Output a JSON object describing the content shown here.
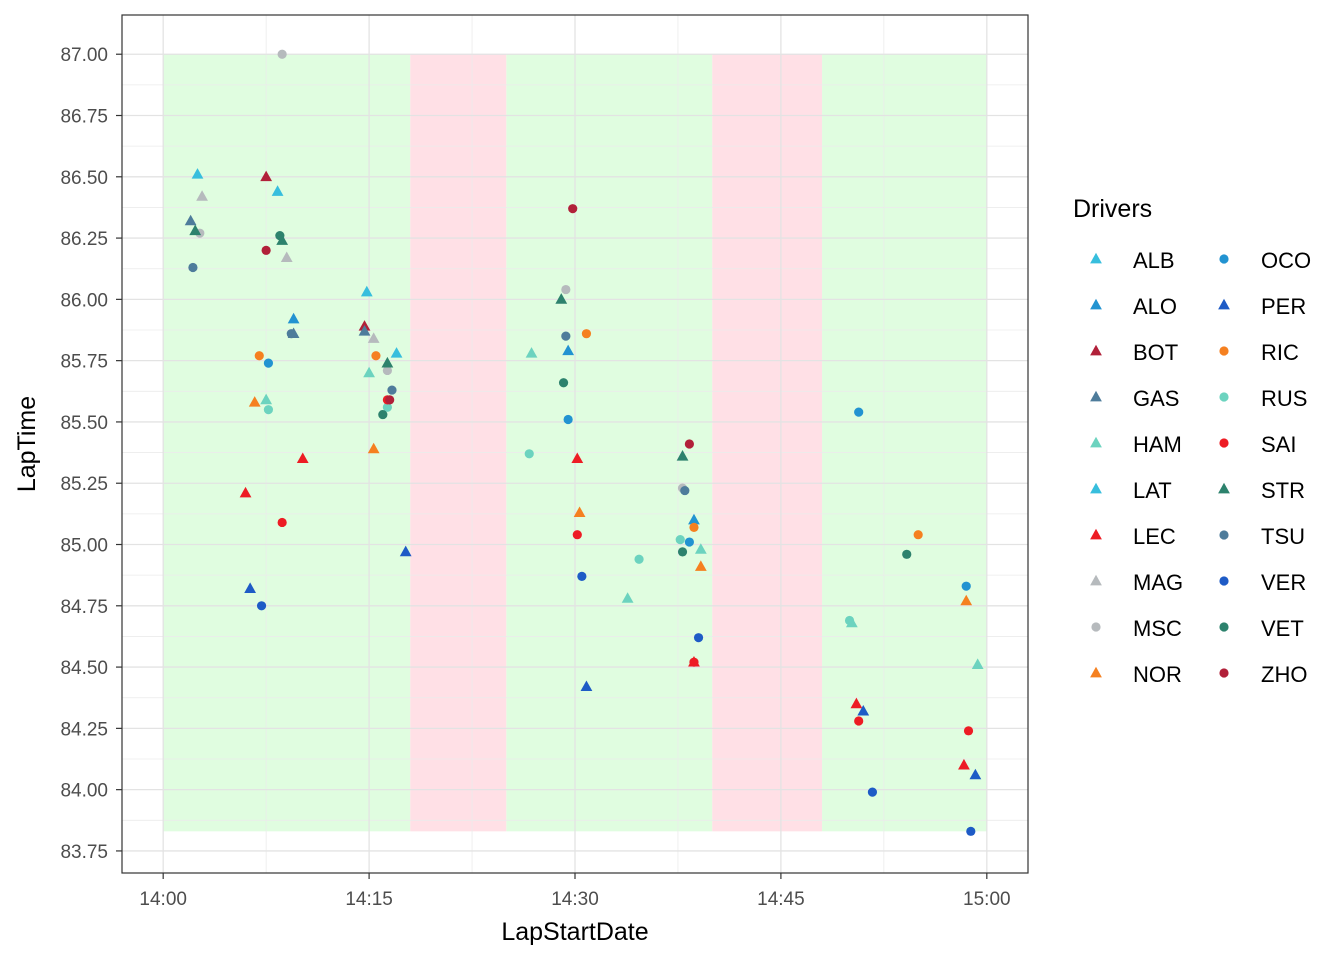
{
  "chart_data": {
    "type": "scatter",
    "xlabel": "LapStartDate",
    "ylabel": "LapTime",
    "x_range": [
      "13:57",
      "15:03"
    ],
    "ylim": [
      83.66,
      87.16
    ],
    "x_ticks": [
      "14:00",
      "14:15",
      "14:30",
      "14:45",
      "15:00"
    ],
    "y_ticks": [
      "83.75",
      "84.00",
      "84.25",
      "84.50",
      "84.75",
      "85.00",
      "85.25",
      "85.50",
      "85.75",
      "86.00",
      "86.25",
      "86.50",
      "86.75",
      "87.00"
    ],
    "grid": true,
    "legend": {
      "title": "Drivers",
      "position": "right",
      "entries": [
        {
          "name": "ALB",
          "color": "#37BEDD",
          "shape": "triangle"
        },
        {
          "name": "ALO",
          "color": "#2293D1",
          "shape": "triangle"
        },
        {
          "name": "BOT",
          "color": "#B12039",
          "shape": "triangle"
        },
        {
          "name": "GAS",
          "color": "#4E7C9B",
          "shape": "triangle"
        },
        {
          "name": "HAM",
          "color": "#6CD3BF",
          "shape": "triangle"
        },
        {
          "name": "LAT",
          "color": "#37BEDD",
          "shape": "triangle"
        },
        {
          "name": "LEC",
          "color": "#ED1C24",
          "shape": "triangle"
        },
        {
          "name": "MAG",
          "color": "#B6BABD",
          "shape": "triangle"
        },
        {
          "name": "MSC",
          "color": "#B6BABD",
          "shape": "circle"
        },
        {
          "name": "NOR",
          "color": "#F58020",
          "shape": "triangle"
        },
        {
          "name": "OCO",
          "color": "#2293D1",
          "shape": "circle"
        },
        {
          "name": "PER",
          "color": "#1E5BC6",
          "shape": "triangle"
        },
        {
          "name": "RIC",
          "color": "#F58020",
          "shape": "circle"
        },
        {
          "name": "RUS",
          "color": "#6CD3BF",
          "shape": "circle"
        },
        {
          "name": "SAI",
          "color": "#ED1C24",
          "shape": "circle"
        },
        {
          "name": "STR",
          "color": "#2D826D",
          "shape": "triangle"
        },
        {
          "name": "TSU",
          "color": "#4E7C9B",
          "shape": "circle"
        },
        {
          "name": "VER",
          "color": "#1E5BC6",
          "shape": "circle"
        },
        {
          "name": "VET",
          "color": "#2D826D",
          "shape": "circle"
        },
        {
          "name": "ZHO",
          "color": "#B12039",
          "shape": "circle"
        }
      ]
    },
    "background_bands": [
      {
        "start": "14:00",
        "end": "14:18",
        "status": "green",
        "color": "#E0FDE0"
      },
      {
        "start": "14:18",
        "end": "14:25",
        "status": "red",
        "color": "#FFE0E6"
      },
      {
        "start": "14:25",
        "end": "14:40",
        "status": "green",
        "color": "#E0FDE0"
      },
      {
        "start": "14:40",
        "end": "14:48",
        "status": "red",
        "color": "#FFE0E6"
      },
      {
        "start": "14:48",
        "end": "15:00",
        "status": "green",
        "color": "#E0FDE0"
      }
    ],
    "bands_y_range": [
      83.83,
      87.0
    ],
    "series": [
      {
        "name": "ALB",
        "points": [
          [
            "14:02:30",
            86.51
          ],
          [
            "14:17:00",
            85.78
          ]
        ]
      },
      {
        "name": "ALO",
        "points": [
          [
            "14:09:30",
            85.92
          ],
          [
            "14:29:30",
            85.79
          ],
          [
            "14:38:40",
            85.1
          ]
        ]
      },
      {
        "name": "BOT",
        "points": [
          [
            "14:07:30",
            86.5
          ],
          [
            "14:14:40",
            85.89
          ]
        ]
      },
      {
        "name": "GAS",
        "points": [
          [
            "14:02:00",
            86.32
          ],
          [
            "14:14:40",
            85.87
          ],
          [
            "14:09:30",
            85.86
          ]
        ]
      },
      {
        "name": "HAM",
        "points": [
          [
            "14:07:30",
            85.59
          ],
          [
            "14:15:00",
            85.7
          ],
          [
            "14:26:50",
            85.78
          ],
          [
            "14:33:50",
            84.78
          ],
          [
            "14:39:10",
            84.98
          ],
          [
            "14:50:10",
            84.68
          ],
          [
            "14:59:20",
            84.51
          ]
        ]
      },
      {
        "name": "LAT",
        "points": [
          [
            "14:08:20",
            86.44
          ],
          [
            "14:14:50",
            86.03
          ]
        ]
      },
      {
        "name": "LEC",
        "points": [
          [
            "14:06:00",
            85.21
          ],
          [
            "14:10:10",
            85.35
          ],
          [
            "14:30:10",
            85.35
          ],
          [
            "14:38:40",
            84.52
          ],
          [
            "14:50:30",
            84.35
          ],
          [
            "14:58:20",
            84.1
          ]
        ]
      },
      {
        "name": "MAG",
        "points": [
          [
            "14:02:50",
            86.42
          ],
          [
            "14:09:00",
            86.17
          ],
          [
            "14:15:20",
            85.84
          ]
        ]
      },
      {
        "name": "MSC",
        "points": [
          [
            "14:08:40",
            87.0
          ],
          [
            "14:02:40",
            86.27
          ],
          [
            "14:29:20",
            86.04
          ],
          [
            "14:16:20",
            85.71
          ],
          [
            "14:37:50",
            85.23
          ]
        ]
      },
      {
        "name": "NOR",
        "points": [
          [
            "14:06:40",
            85.58
          ],
          [
            "14:15:20",
            85.39
          ],
          [
            "14:30:20",
            85.13
          ],
          [
            "14:39:10",
            84.91
          ],
          [
            "14:58:30",
            84.77
          ]
        ]
      },
      {
        "name": "OCO",
        "points": [
          [
            "14:07:40",
            85.74
          ],
          [
            "14:29:30",
            85.51
          ],
          [
            "14:38:20",
            85.01
          ],
          [
            "14:50:40",
            85.54
          ],
          [
            "14:58:30",
            84.83
          ]
        ]
      },
      {
        "name": "PER",
        "points": [
          [
            "14:06:20",
            84.82
          ],
          [
            "14:17:40",
            84.97
          ],
          [
            "14:30:50",
            84.42
          ],
          [
            "14:51:00",
            84.32
          ],
          [
            "14:59:10",
            84.06
          ]
        ]
      },
      {
        "name": "RIC",
        "points": [
          [
            "14:07:00",
            85.77
          ],
          [
            "14:15:30",
            85.77
          ],
          [
            "14:30:50",
            85.86
          ],
          [
            "14:38:40",
            85.07
          ],
          [
            "14:55:00",
            85.04
          ]
        ]
      },
      {
        "name": "RUS",
        "points": [
          [
            "14:07:40",
            85.55
          ],
          [
            "14:16:20",
            85.56
          ],
          [
            "14:26:40",
            85.37
          ],
          [
            "14:34:40",
            84.94
          ],
          [
            "14:37:40",
            85.02
          ],
          [
            "14:50:00",
            84.69
          ]
        ]
      },
      {
        "name": "SAI",
        "points": [
          [
            "14:08:40",
            85.09
          ],
          [
            "14:16:20",
            85.59
          ],
          [
            "14:30:10",
            85.04
          ],
          [
            "14:38:40",
            84.52
          ],
          [
            "14:50:40",
            84.28
          ],
          [
            "14:58:40",
            84.24
          ]
        ]
      },
      {
        "name": "STR",
        "points": [
          [
            "14:02:20",
            86.28
          ],
          [
            "14:08:40",
            86.24
          ],
          [
            "14:16:20",
            85.74
          ],
          [
            "14:29:00",
            86.0
          ],
          [
            "14:37:50",
            85.36
          ]
        ]
      },
      {
        "name": "TSU",
        "points": [
          [
            "14:02:10",
            86.13
          ],
          [
            "14:09:20",
            85.86
          ],
          [
            "14:16:40",
            85.63
          ],
          [
            "14:29:20",
            85.85
          ],
          [
            "14:38:00",
            85.22
          ]
        ]
      },
      {
        "name": "VER",
        "points": [
          [
            "14:07:10",
            84.75
          ],
          [
            "14:30:30",
            84.87
          ],
          [
            "14:39:00",
            84.62
          ],
          [
            "14:51:40",
            83.99
          ],
          [
            "14:58:50",
            83.83
          ]
        ]
      },
      {
        "name": "VET",
        "points": [
          [
            "14:08:30",
            86.26
          ],
          [
            "14:16:00",
            85.53
          ],
          [
            "14:29:10",
            85.66
          ],
          [
            "14:37:50",
            84.97
          ],
          [
            "14:54:10",
            84.96
          ]
        ]
      },
      {
        "name": "ZHO",
        "points": [
          [
            "14:07:30",
            86.2
          ],
          [
            "14:16:30",
            85.59
          ],
          [
            "14:29:50",
            86.37
          ],
          [
            "14:38:20",
            85.41
          ]
        ]
      }
    ]
  }
}
